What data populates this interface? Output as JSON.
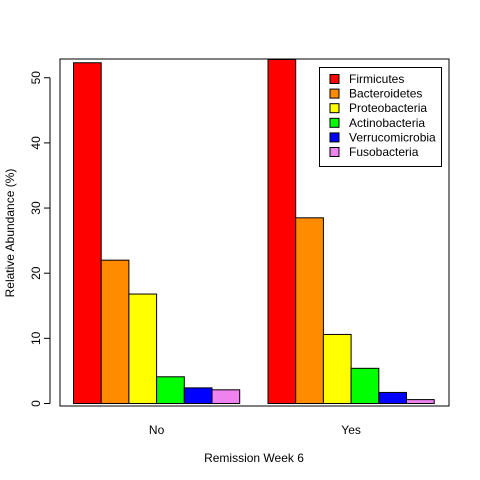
{
  "chart_data": {
    "type": "bar",
    "title": "",
    "xlabel": "Remission Week 6",
    "ylabel": "Relative Abundance (%)",
    "categories": [
      "No",
      "Yes"
    ],
    "ylim": [
      0,
      52.8
    ],
    "yticks": [
      "0",
      "10",
      "20",
      "30",
      "40",
      "50"
    ],
    "grid": false,
    "legend_position": "top-right",
    "series": [
      {
        "name": "Firmicutes",
        "color": "#ff0000",
        "values": [
          52.3,
          52.8
        ]
      },
      {
        "name": "Bacteroidetes",
        "color": "#ff8c00",
        "values": [
          22.0,
          28.5
        ]
      },
      {
        "name": "Proteobacteria",
        "color": "#ffff00",
        "values": [
          16.8,
          10.6
        ]
      },
      {
        "name": "Actinobacteria",
        "color": "#00ff00",
        "values": [
          4.1,
          5.4
        ]
      },
      {
        "name": "Verrucomicrobia",
        "color": "#0000ff",
        "values": [
          2.4,
          1.7
        ]
      },
      {
        "name": "Fusobacteria",
        "color": "#ee82ee",
        "values": [
          2.1,
          0.6
        ]
      }
    ]
  }
}
